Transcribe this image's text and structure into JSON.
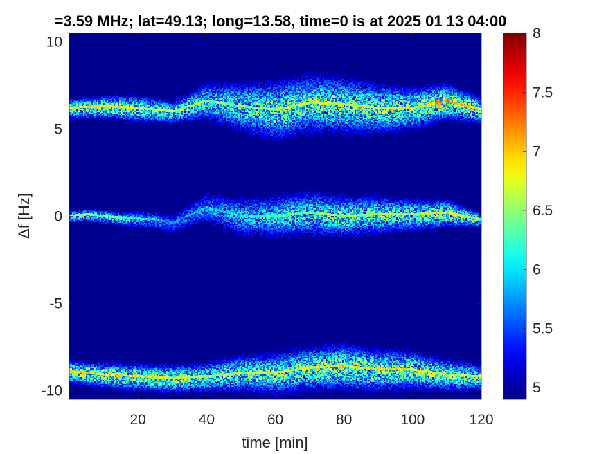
{
  "chart_data": {
    "type": "heatmap",
    "title": "=3.59 MHz;  lat=49.13; long=13.58, time=0 is at 2025 01 13 04:00",
    "xlabel": "time [min]",
    "ylabel": "Δf [Hz]",
    "xlim": [
      0,
      120
    ],
    "ylim": [
      -10.5,
      10.5
    ],
    "x_ticks": [
      20,
      40,
      60,
      80,
      100,
      120
    ],
    "y_ticks": [
      -10,
      -5,
      0,
      5,
      10
    ],
    "x_tick_labels": [
      "20",
      "40",
      "60",
      "80",
      "100",
      "120"
    ],
    "y_tick_labels": [
      "-10",
      "-5",
      "0",
      "5",
      "10"
    ],
    "colorbar": {
      "colormap": "jet",
      "range": [
        4.9,
        8
      ],
      "ticks": [
        5,
        5.5,
        6,
        6.5,
        7,
        7.5,
        8
      ],
      "tick_labels": [
        "5",
        "5.5",
        "6",
        "6.5",
        "7",
        "7.5",
        "8"
      ]
    },
    "background_color": "#00008f",
    "grid": false,
    "bands": [
      {
        "id": "upper",
        "ridge": [
          [
            0,
            6.2
          ],
          [
            10,
            6.3
          ],
          [
            20,
            6.2
          ],
          [
            30,
            6.0
          ],
          [
            40,
            6.6
          ],
          [
            50,
            6.3
          ],
          [
            60,
            6.1
          ],
          [
            70,
            6.5
          ],
          [
            80,
            6.4
          ],
          [
            90,
            6.2
          ],
          [
            100,
            6.2
          ],
          [
            110,
            6.6
          ],
          [
            120,
            6.1
          ]
        ],
        "spread": [
          [
            0,
            0.5
          ],
          [
            20,
            0.7
          ],
          [
            30,
            0.6
          ],
          [
            40,
            1.0
          ],
          [
            60,
            1.6
          ],
          [
            80,
            1.5
          ],
          [
            100,
            1.1
          ],
          [
            120,
            0.7
          ]
        ],
        "peak_level": [
          [
            0,
            6.9
          ],
          [
            20,
            6.8
          ],
          [
            40,
            6.4
          ],
          [
            60,
            6.6
          ],
          [
            80,
            6.7
          ],
          [
            100,
            6.8
          ],
          [
            110,
            7.2
          ],
          [
            120,
            6.8
          ]
        ]
      },
      {
        "id": "middle",
        "ridge": [
          [
            0,
            0.0
          ],
          [
            5,
            0.1
          ],
          [
            15,
            -0.1
          ],
          [
            25,
            -0.2
          ],
          [
            30,
            -0.4
          ],
          [
            40,
            0.5
          ],
          [
            50,
            0.0
          ],
          [
            60,
            0.0
          ],
          [
            70,
            0.2
          ],
          [
            80,
            0.0
          ],
          [
            90,
            0.1
          ],
          [
            100,
            0.1
          ],
          [
            110,
            0.2
          ],
          [
            120,
            -0.2
          ]
        ],
        "spread": [
          [
            0,
            0.3
          ],
          [
            15,
            0.4
          ],
          [
            30,
            0.6
          ],
          [
            50,
            1.1
          ],
          [
            70,
            1.2
          ],
          [
            90,
            1.0
          ],
          [
            110,
            0.7
          ],
          [
            120,
            0.4
          ]
        ],
        "peak_level": [
          [
            0,
            6.6
          ],
          [
            15,
            6.3
          ],
          [
            30,
            5.7
          ],
          [
            50,
            6.1
          ],
          [
            80,
            6.6
          ],
          [
            100,
            6.6
          ],
          [
            110,
            6.9
          ],
          [
            120,
            6.5
          ]
        ]
      },
      {
        "id": "lower",
        "ridge": [
          [
            0,
            -8.9
          ],
          [
            10,
            -9.1
          ],
          [
            20,
            -9.2
          ],
          [
            30,
            -9.3
          ],
          [
            40,
            -9.2
          ],
          [
            50,
            -9.0
          ],
          [
            60,
            -9.0
          ],
          [
            70,
            -8.7
          ],
          [
            80,
            -8.6
          ],
          [
            90,
            -8.8
          ],
          [
            100,
            -8.8
          ],
          [
            110,
            -9.1
          ],
          [
            120,
            -9.2
          ]
        ],
        "spread": [
          [
            0,
            0.6
          ],
          [
            20,
            0.7
          ],
          [
            40,
            0.8
          ],
          [
            60,
            1.1
          ],
          [
            80,
            1.2
          ],
          [
            100,
            1.0
          ],
          [
            120,
            0.7
          ]
        ],
        "peak_level": [
          [
            0,
            6.9
          ],
          [
            20,
            6.9
          ],
          [
            40,
            6.6
          ],
          [
            60,
            6.7
          ],
          [
            80,
            6.9
          ],
          [
            100,
            6.8
          ],
          [
            120,
            6.6
          ]
        ]
      }
    ]
  }
}
